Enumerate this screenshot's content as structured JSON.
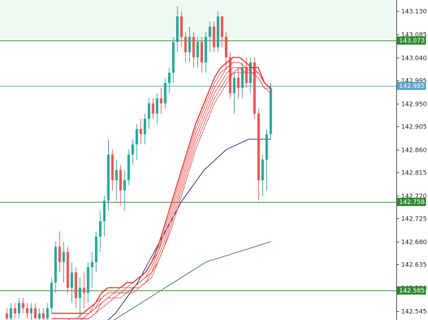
{
  "chart_data": {
    "type": "candlestick",
    "y_axis": {
      "position": "right",
      "ticks": [
        "143.130",
        "143.085",
        "143.040",
        "142.995",
        "142.950",
        "142.905",
        "142.860",
        "142.815",
        "142.770",
        "142.725",
        "142.680",
        "142.635",
        "142.590",
        "142.545"
      ],
      "ylim": [
        142.527,
        143.152
      ]
    },
    "grid": false,
    "colors": {
      "bull_candle": "#26a69a",
      "bear_candle": "#ef5350",
      "ema_ribbon": "#e53935",
      "ma_blue": "#1a237e",
      "ma_green": "#2e7d32",
      "level_line": "#2e8b2e",
      "price_line": "#5aa5c8",
      "zone_fill": "#eef9f2"
    },
    "zone": {
      "from": 143.073,
      "to": 143.152
    },
    "levels": [
      {
        "label": "143.073",
        "value": 143.073,
        "color": "#2e8b2e"
      },
      {
        "label": "142.985",
        "value": 142.985,
        "color": "#5aa5c8"
      },
      {
        "label": "142.758",
        "value": 142.758,
        "color": "#2e8b2e"
      },
      {
        "label": "142.585",
        "value": 142.585,
        "color": "#2e8b2e"
      }
    ],
    "candles": [
      [
        142.54,
        142.55,
        142.52,
        142.53
      ],
      [
        142.53,
        142.56,
        142.52,
        142.55
      ],
      [
        142.55,
        142.56,
        142.53,
        142.54
      ],
      [
        142.54,
        142.57,
        142.53,
        142.56
      ],
      [
        142.56,
        142.57,
        142.54,
        142.55
      ],
      [
        142.55,
        142.56,
        142.53,
        142.54
      ],
      [
        142.54,
        142.56,
        142.52,
        142.55
      ],
      [
        142.55,
        142.56,
        142.53,
        142.53
      ],
      [
        142.53,
        142.55,
        142.52,
        142.54
      ],
      [
        142.54,
        142.55,
        142.52,
        142.53
      ],
      [
        142.53,
        142.56,
        142.52,
        142.55
      ],
      [
        142.55,
        142.61,
        142.54,
        142.6
      ],
      [
        142.6,
        142.68,
        142.58,
        142.67
      ],
      [
        142.67,
        142.7,
        142.62,
        142.64
      ],
      [
        142.64,
        142.68,
        142.6,
        142.66
      ],
      [
        142.66,
        142.67,
        142.58,
        142.59
      ],
      [
        142.59,
        142.64,
        142.56,
        142.62
      ],
      [
        142.62,
        142.63,
        142.55,
        142.57
      ],
      [
        142.57,
        142.61,
        142.53,
        142.59
      ],
      [
        142.59,
        142.62,
        142.55,
        142.58
      ],
      [
        142.58,
        142.64,
        142.56,
        142.63
      ],
      [
        142.63,
        142.66,
        142.59,
        142.64
      ],
      [
        142.64,
        142.7,
        142.62,
        142.69
      ],
      [
        142.69,
        142.74,
        142.66,
        142.72
      ],
      [
        142.72,
        142.77,
        142.69,
        142.76
      ],
      [
        142.76,
        142.88,
        142.74,
        142.85
      ],
      [
        142.85,
        142.86,
        142.78,
        142.8
      ],
      [
        142.8,
        142.84,
        142.76,
        142.82
      ],
      [
        142.82,
        142.83,
        142.75,
        142.78
      ],
      [
        142.78,
        142.82,
        142.74,
        142.8
      ],
      [
        142.8,
        142.86,
        142.79,
        142.85
      ],
      [
        142.85,
        142.88,
        142.83,
        142.87
      ],
      [
        142.87,
        142.91,
        142.84,
        142.9
      ],
      [
        142.9,
        142.92,
        142.87,
        142.89
      ],
      [
        142.89,
        142.93,
        142.87,
        142.92
      ],
      [
        142.92,
        142.96,
        142.9,
        142.95
      ],
      [
        142.95,
        142.96,
        142.92,
        142.93
      ],
      [
        142.93,
        142.97,
        142.91,
        142.96
      ],
      [
        142.96,
        142.98,
        142.93,
        142.95
      ],
      [
        142.95,
        143.0,
        142.94,
        142.99
      ],
      [
        142.99,
        143.02,
        142.97,
        143.01
      ],
      [
        143.01,
        143.08,
        142.99,
        143.07
      ],
      [
        143.07,
        143.14,
        143.05,
        143.12
      ],
      [
        143.12,
        143.13,
        143.06,
        143.08
      ],
      [
        143.08,
        143.09,
        143.03,
        143.05
      ],
      [
        143.05,
        143.1,
        143.03,
        143.08
      ],
      [
        143.08,
        143.09,
        143.02,
        143.04
      ],
      [
        143.04,
        143.08,
        143.02,
        143.07
      ],
      [
        143.07,
        143.08,
        143.01,
        143.03
      ],
      [
        143.03,
        143.09,
        143.01,
        143.08
      ],
      [
        143.08,
        143.11,
        143.05,
        143.1
      ],
      [
        143.1,
        143.11,
        143.05,
        143.06
      ],
      [
        143.06,
        143.13,
        143.05,
        143.12
      ],
      [
        143.12,
        143.12,
        143.06,
        143.08
      ],
      [
        143.08,
        143.09,
        143.02,
        143.04
      ],
      [
        143.04,
        143.05,
        142.96,
        142.97
      ],
      [
        142.97,
        143.01,
        142.93,
        143.0
      ],
      [
        143.0,
        143.02,
        142.96,
        142.98
      ],
      [
        142.98,
        143.03,
        142.96,
        143.02
      ],
      [
        143.02,
        143.04,
        142.98,
        142.99
      ],
      [
        142.99,
        143.04,
        142.97,
        143.03
      ],
      [
        143.03,
        143.04,
        142.92,
        142.93
      ],
      [
        142.93,
        142.94,
        142.76,
        142.8
      ],
      [
        142.8,
        142.85,
        142.77,
        142.84
      ],
      [
        142.84,
        142.9,
        142.78,
        142.89
      ],
      [
        142.89,
        142.99,
        142.88,
        142.98
      ]
    ],
    "ema_ribbon": [
      [
        142.54,
        142.54,
        142.54,
        142.54,
        142.54,
        142.54,
        142.55,
        142.56,
        142.58,
        142.59,
        142.59,
        142.59,
        142.6,
        142.6,
        142.61,
        142.62,
        142.64,
        142.67,
        142.71,
        142.75,
        142.79,
        142.83,
        142.87,
        142.91,
        142.94,
        142.97,
        143.0,
        143.02,
        143.03,
        143.04,
        143.04,
        143.03,
        143.02,
        143.02,
        142.99,
        142.98
      ],
      [
        142.53,
        142.53,
        142.53,
        142.53,
        142.53,
        142.54,
        142.54,
        142.56,
        142.57,
        142.58,
        142.58,
        142.59,
        142.59,
        142.6,
        142.61,
        142.62,
        142.64,
        142.66,
        142.7,
        142.74,
        142.78,
        142.82,
        142.86,
        142.9,
        142.93,
        142.96,
        142.99,
        143.01,
        143.02,
        143.03,
        143.03,
        143.02,
        143.02,
        143.01,
        142.99,
        142.98
      ],
      [
        142.53,
        142.53,
        142.53,
        142.53,
        142.53,
        142.53,
        142.54,
        142.55,
        142.57,
        142.58,
        142.58,
        142.58,
        142.59,
        142.59,
        142.6,
        142.61,
        142.63,
        142.66,
        142.69,
        142.73,
        142.77,
        142.81,
        142.85,
        142.89,
        142.92,
        142.95,
        142.98,
        143.0,
        143.02,
        143.03,
        143.03,
        143.02,
        143.02,
        143.01,
        142.99,
        142.98
      ],
      [
        142.53,
        142.53,
        142.53,
        142.53,
        142.53,
        142.53,
        142.54,
        142.55,
        142.56,
        142.57,
        142.58,
        142.58,
        142.58,
        142.59,
        142.6,
        142.61,
        142.62,
        142.65,
        142.68,
        142.72,
        142.76,
        142.8,
        142.84,
        142.88,
        142.91,
        142.94,
        142.97,
        142.99,
        143.01,
        143.02,
        143.02,
        143.02,
        143.01,
        143.01,
        142.99,
        142.98
      ],
      [
        142.52,
        142.52,
        142.52,
        142.53,
        142.53,
        142.53,
        142.53,
        142.54,
        142.56,
        142.57,
        142.57,
        142.58,
        142.58,
        142.59,
        142.59,
        142.6,
        142.62,
        142.64,
        142.67,
        142.71,
        142.75,
        142.79,
        142.83,
        142.87,
        142.9,
        142.93,
        142.96,
        142.98,
        143.0,
        143.01,
        143.02,
        143.01,
        143.01,
        143.0,
        142.98,
        142.98
      ],
      [
        142.52,
        142.52,
        142.52,
        142.52,
        142.52,
        142.53,
        142.53,
        142.54,
        142.55,
        142.56,
        142.57,
        142.57,
        142.58,
        142.58,
        142.59,
        142.6,
        142.61,
        142.64,
        142.67,
        142.7,
        142.74,
        142.78,
        142.82,
        142.86,
        142.89,
        142.92,
        142.95,
        142.97,
        142.99,
        143.01,
        143.01,
        143.01,
        143.01,
        143.0,
        142.98,
        142.97
      ]
    ],
    "ma_blue": [
      142.52,
      142.54,
      142.57,
      142.6,
      142.64,
      142.68,
      142.72,
      142.76,
      142.79,
      142.82,
      142.84,
      142.86,
      142.87,
      142.88,
      142.88,
      142.88
    ],
    "ma_green": [
      142.52,
      142.54,
      142.56,
      142.58,
      142.6,
      142.62,
      142.64,
      142.65,
      142.66,
      142.67,
      142.68
    ]
  }
}
